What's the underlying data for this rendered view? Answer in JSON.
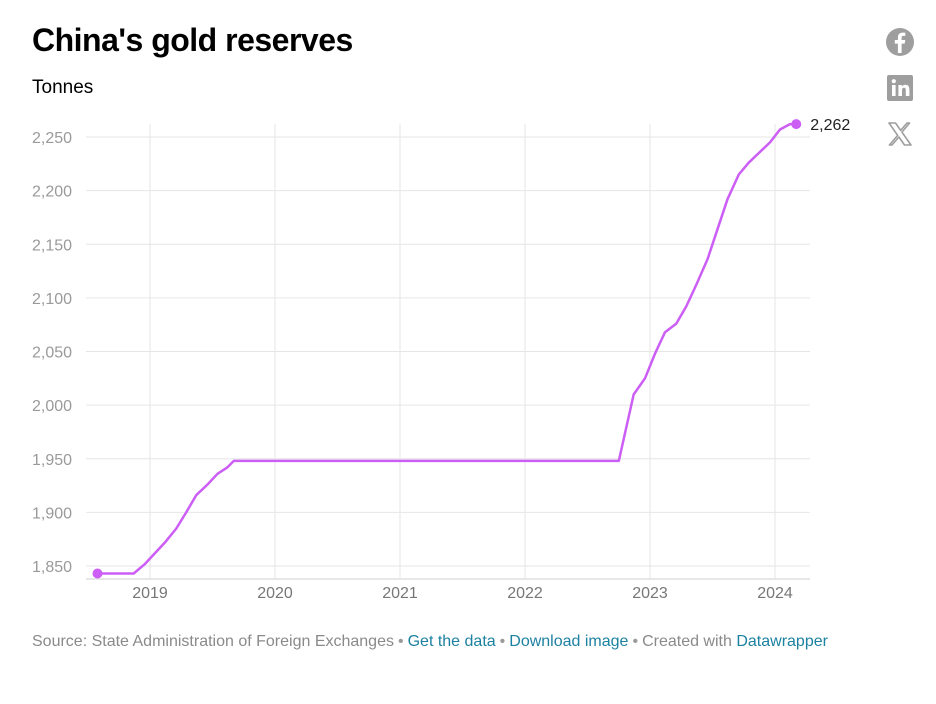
{
  "title": "China's gold reserves",
  "subtitle": "Tonnes",
  "social": {
    "facebook": "facebook-icon",
    "linkedin": "linkedin-icon",
    "x": "x-icon"
  },
  "footer": {
    "source": "Source: State Administration of Foreign Exchanges",
    "get_data": "Get the data",
    "download": "Download image",
    "created": "Created with",
    "datawrapper": "Datawrapper",
    "separator": "•"
  },
  "colors": {
    "line": "#cc5ef5",
    "grid": "#e6e6e6",
    "link": "#1d81a2"
  },
  "chart_data": {
    "type": "line",
    "title": "China's gold reserves",
    "ylabel": "Tonnes",
    "xlabel": "",
    "ylim": [
      1840,
      2262
    ],
    "yticks": [
      1850,
      1900,
      1950,
      2000,
      2050,
      2100,
      2150,
      2200,
      2250
    ],
    "ytick_labels": [
      "1,850",
      "1,900",
      "1,950",
      "2,000",
      "2,050",
      "2,100",
      "2,150",
      "2,200",
      "2,250"
    ],
    "xticks": [
      2019,
      2020,
      2021,
      2022,
      2023,
      2024
    ],
    "xtick_labels": [
      "2019",
      "2020",
      "2021",
      "2022",
      "2023",
      "2024"
    ],
    "grid": true,
    "end_label": "2,262",
    "series": [
      {
        "x": [
          2018.58,
          2018.87,
          2018.96,
          2019.04,
          2019.12,
          2019.21,
          2019.29,
          2019.37,
          2019.46,
          2019.54,
          2019.62,
          2019.67,
          2019.8,
          2020.5,
          2021.5,
          2022.5,
          2022.75,
          2022.87,
          2022.96,
          2023.04,
          2023.12,
          2023.21,
          2023.29,
          2023.37,
          2023.46,
          2023.54,
          2023.62,
          2023.71,
          2023.79,
          2023.87,
          2023.96,
          2024.04,
          2024.12,
          2024.17
        ],
        "y": [
          1843,
          1843,
          1852,
          1862,
          1872,
          1885,
          1900,
          1916,
          1926,
          1936,
          1942,
          1948,
          1948,
          1948,
          1948,
          1948,
          1948,
          2010,
          2025,
          2048,
          2068,
          2076,
          2092,
          2112,
          2136,
          2164,
          2192,
          2215,
          2226,
          2235,
          2245,
          2257,
          2262,
          2262
        ]
      }
    ]
  }
}
